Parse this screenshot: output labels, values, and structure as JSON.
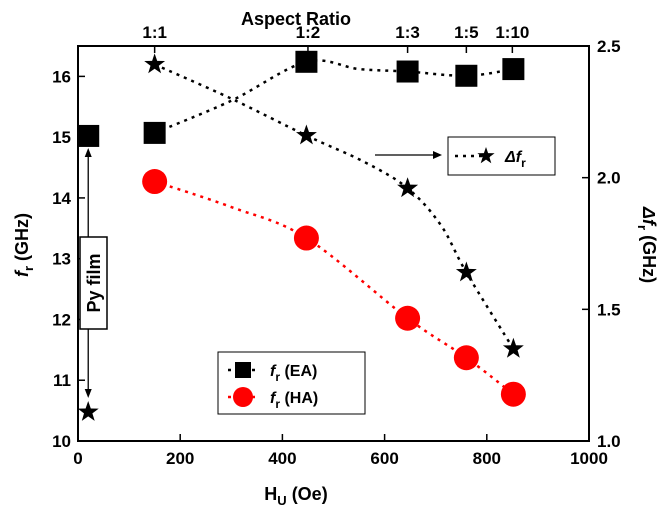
{
  "chart_data": {
    "type": "scatter",
    "top_axis": {
      "title": "Aspect Ratio",
      "ticks": [
        {
          "label": "1:1",
          "x": 150
        },
        {
          "label": "1:2",
          "x": 450
        },
        {
          "label": "1:3",
          "x": 645
        },
        {
          "label": "1:5",
          "x": 760
        },
        {
          "label": "1:10",
          "x": 850
        }
      ]
    },
    "x_axis": {
      "title_main": "H",
      "title_sub": "U",
      "title_tail": " (Oe)",
      "range": [
        0,
        1000
      ],
      "ticks": [
        0,
        200,
        400,
        600,
        800,
        1000
      ]
    },
    "y_left": {
      "title_main": "f",
      "title_sub": "r",
      "title_tail": " (GHz)",
      "range": [
        10,
        16.5
      ],
      "ticks": [
        10,
        11,
        12,
        13,
        14,
        15,
        16
      ]
    },
    "y_right": {
      "title_main": "Δf",
      "title_sub": "r",
      "title_tail": " (GHz)",
      "range": [
        1.0,
        2.5
      ],
      "ticks": [
        "1.0",
        "1.5",
        "2.0",
        "2.5"
      ]
    },
    "series": [
      {
        "name": "fr (EA)",
        "axis": "left",
        "marker": "square",
        "color": "#000000",
        "points": [
          [
            20,
            15.02
          ],
          [
            150,
            15.07
          ],
          [
            447,
            16.24
          ],
          [
            645,
            16.08
          ],
          [
            760,
            16.01
          ],
          [
            852,
            16.12
          ]
        ],
        "fit": [
          [
            150,
            15.07
          ],
          [
            300,
            15.6
          ],
          [
            447,
            16.24
          ],
          [
            550,
            16.12
          ],
          [
            645,
            16.08
          ],
          [
            760,
            16.01
          ],
          [
            852,
            16.12
          ]
        ]
      },
      {
        "name": "fr (HA)",
        "axis": "left",
        "marker": "circle",
        "color": "#ff0000",
        "points": [
          [
            150,
            14.27
          ],
          [
            447,
            13.34
          ],
          [
            645,
            12.02
          ],
          [
            760,
            11.37
          ],
          [
            852,
            10.77
          ]
        ],
        "fit": [
          [
            150,
            14.27
          ],
          [
            300,
            13.85
          ],
          [
            447,
            13.34
          ],
          [
            645,
            12.02
          ],
          [
            760,
            11.37
          ],
          [
            852,
            10.77
          ]
        ]
      },
      {
        "name": "Δfr",
        "axis": "right",
        "marker": "star",
        "color": "#000000",
        "points": [
          [
            20,
            1.11
          ],
          [
            150,
            2.43
          ],
          [
            447,
            2.16
          ],
          [
            645,
            1.96
          ],
          [
            760,
            1.64
          ],
          [
            852,
            1.35
          ]
        ],
        "fit": [
          [
            150,
            2.43
          ],
          [
            300,
            2.3
          ],
          [
            447,
            2.16
          ],
          [
            560,
            2.06
          ],
          [
            645,
            1.96
          ],
          [
            710,
            1.82
          ],
          [
            760,
            1.64
          ],
          [
            852,
            1.35
          ]
        ]
      }
    ],
    "legend": {
      "placement": "bottom-center",
      "items": [
        {
          "main": "f",
          "sub": "r",
          "tail": " (EA)",
          "marker": "square",
          "color": "#000000"
        },
        {
          "main": "f",
          "sub": "r",
          "tail": " (HA)",
          "marker": "circle",
          "color": "#ff0000"
        }
      ]
    },
    "annotations": {
      "py_film": "Py film",
      "delta_label_main": "Δf",
      "delta_label_sub": "r"
    }
  }
}
